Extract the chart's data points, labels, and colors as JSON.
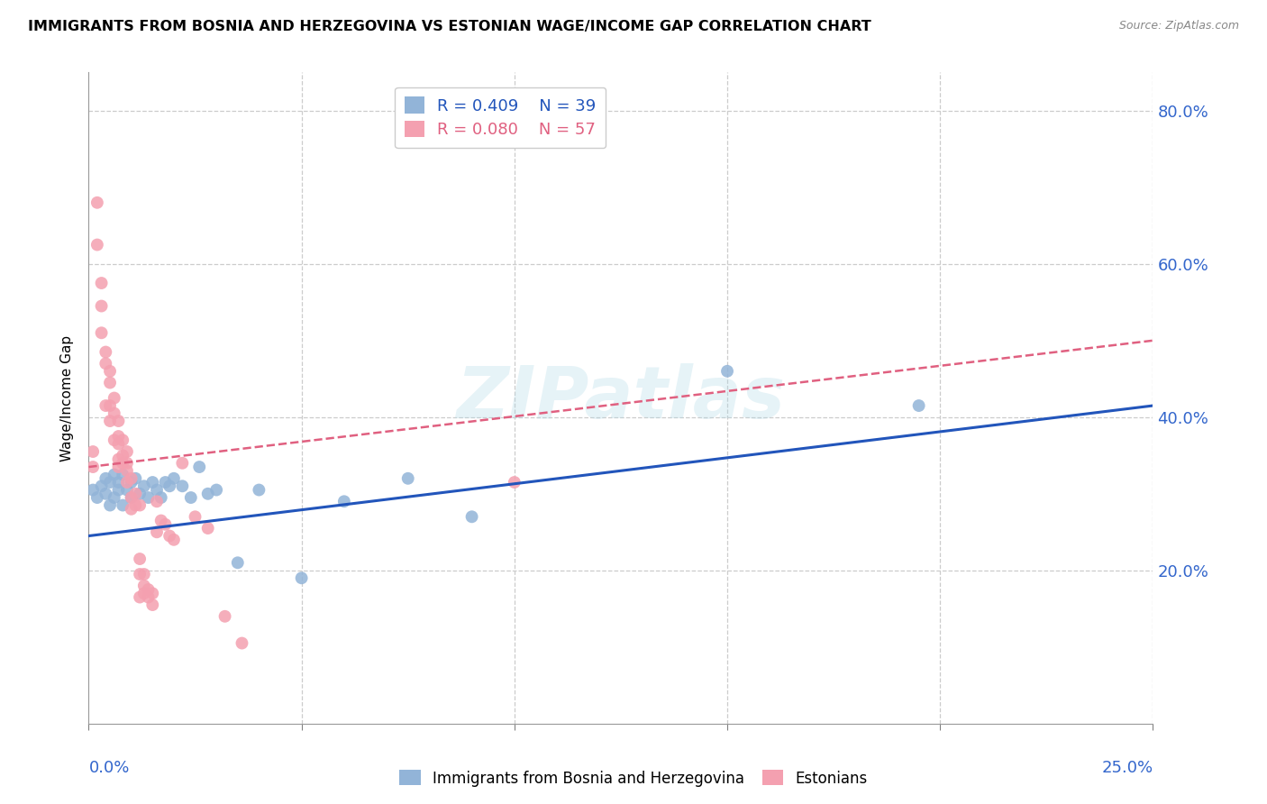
{
  "title": "IMMIGRANTS FROM BOSNIA AND HERZEGOVINA VS ESTONIAN WAGE/INCOME GAP CORRELATION CHART",
  "source": "Source: ZipAtlas.com",
  "ylabel": "Wage/Income Gap",
  "watermark": "ZIPatlas",
  "legend_r1": "R = 0.409",
  "legend_n1": "N = 39",
  "legend_r2": "R = 0.080",
  "legend_n2": "N = 57",
  "color_blue": "#92B4D8",
  "color_pink": "#F4A0B0",
  "trendline_blue": "#2255BB",
  "trendline_pink": "#E06080",
  "blue_scatter_x": [
    0.001,
    0.002,
    0.003,
    0.004,
    0.004,
    0.005,
    0.005,
    0.006,
    0.006,
    0.007,
    0.007,
    0.008,
    0.008,
    0.009,
    0.01,
    0.01,
    0.011,
    0.012,
    0.013,
    0.014,
    0.015,
    0.016,
    0.017,
    0.018,
    0.019,
    0.02,
    0.022,
    0.024,
    0.026,
    0.028,
    0.03,
    0.035,
    0.04,
    0.05,
    0.06,
    0.075,
    0.09,
    0.15,
    0.195
  ],
  "blue_scatter_y": [
    0.305,
    0.295,
    0.31,
    0.32,
    0.3,
    0.315,
    0.285,
    0.325,
    0.295,
    0.315,
    0.305,
    0.285,
    0.325,
    0.305,
    0.315,
    0.295,
    0.32,
    0.3,
    0.31,
    0.295,
    0.315,
    0.305,
    0.295,
    0.315,
    0.31,
    0.32,
    0.31,
    0.295,
    0.335,
    0.3,
    0.305,
    0.21,
    0.305,
    0.19,
    0.29,
    0.32,
    0.27,
    0.46,
    0.415
  ],
  "pink_scatter_x": [
    0.001,
    0.001,
    0.002,
    0.002,
    0.003,
    0.003,
    0.003,
    0.004,
    0.004,
    0.004,
    0.005,
    0.005,
    0.005,
    0.005,
    0.006,
    0.006,
    0.006,
    0.007,
    0.007,
    0.007,
    0.007,
    0.007,
    0.008,
    0.008,
    0.008,
    0.009,
    0.009,
    0.009,
    0.009,
    0.01,
    0.01,
    0.01,
    0.011,
    0.011,
    0.012,
    0.012,
    0.012,
    0.012,
    0.013,
    0.013,
    0.013,
    0.014,
    0.014,
    0.015,
    0.015,
    0.016,
    0.016,
    0.017,
    0.018,
    0.019,
    0.02,
    0.022,
    0.025,
    0.028,
    0.032,
    0.036,
    0.1
  ],
  "pink_scatter_y": [
    0.355,
    0.335,
    0.68,
    0.625,
    0.575,
    0.545,
    0.51,
    0.485,
    0.47,
    0.415,
    0.46,
    0.445,
    0.415,
    0.395,
    0.425,
    0.405,
    0.37,
    0.395,
    0.375,
    0.365,
    0.345,
    0.335,
    0.37,
    0.35,
    0.34,
    0.355,
    0.34,
    0.33,
    0.315,
    0.32,
    0.295,
    0.28,
    0.3,
    0.285,
    0.285,
    0.215,
    0.195,
    0.165,
    0.195,
    0.18,
    0.17,
    0.175,
    0.165,
    0.17,
    0.155,
    0.29,
    0.25,
    0.265,
    0.26,
    0.245,
    0.24,
    0.34,
    0.27,
    0.255,
    0.14,
    0.105,
    0.315
  ],
  "xlim": [
    0.0,
    0.25
  ],
  "ylim": [
    0.0,
    0.85
  ],
  "blue_trend_x": [
    0.0,
    0.25
  ],
  "blue_trend_y": [
    0.245,
    0.415
  ],
  "pink_trend_x": [
    0.0,
    0.25
  ],
  "pink_trend_y": [
    0.335,
    0.5
  ]
}
